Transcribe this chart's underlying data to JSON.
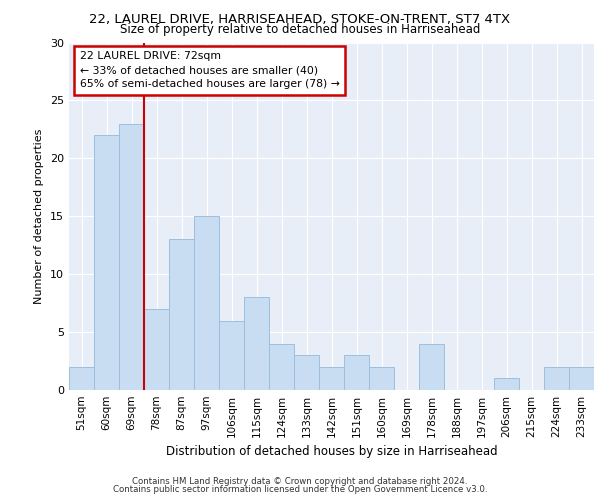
{
  "title1": "22, LAUREL DRIVE, HARRISEAHEAD, STOKE-ON-TRENT, ST7 4TX",
  "title2": "Size of property relative to detached houses in Harriseahead",
  "xlabel": "Distribution of detached houses by size in Harriseahead",
  "ylabel": "Number of detached properties",
  "categories": [
    "51sqm",
    "60sqm",
    "69sqm",
    "78sqm",
    "87sqm",
    "97sqm",
    "106sqm",
    "115sqm",
    "124sqm",
    "133sqm",
    "142sqm",
    "151sqm",
    "160sqm",
    "169sqm",
    "178sqm",
    "188sqm",
    "197sqm",
    "206sqm",
    "215sqm",
    "224sqm",
    "233sqm"
  ],
  "values": [
    2,
    22,
    23,
    7,
    13,
    15,
    6,
    8,
    4,
    3,
    2,
    3,
    2,
    0,
    4,
    0,
    0,
    1,
    0,
    2,
    2
  ],
  "bar_color": "#c9ddf2",
  "bar_edge_color": "#9bbfdd",
  "vline_x": 2.5,
  "vline_color": "#cc0000",
  "annotation_lines": [
    "22 LAUREL DRIVE: 72sqm",
    "← 33% of detached houses are smaller (40)",
    "65% of semi-detached houses are larger (78) →"
  ],
  "annotation_box_color": "#ffffff",
  "annotation_box_edge_color": "#cc0000",
  "ylim": [
    0,
    30
  ],
  "yticks": [
    0,
    5,
    10,
    15,
    20,
    25,
    30
  ],
  "bg_color": "#e8eef7",
  "footer1": "Contains HM Land Registry data © Crown copyright and database right 2024.",
  "footer2": "Contains public sector information licensed under the Open Government Licence v3.0."
}
